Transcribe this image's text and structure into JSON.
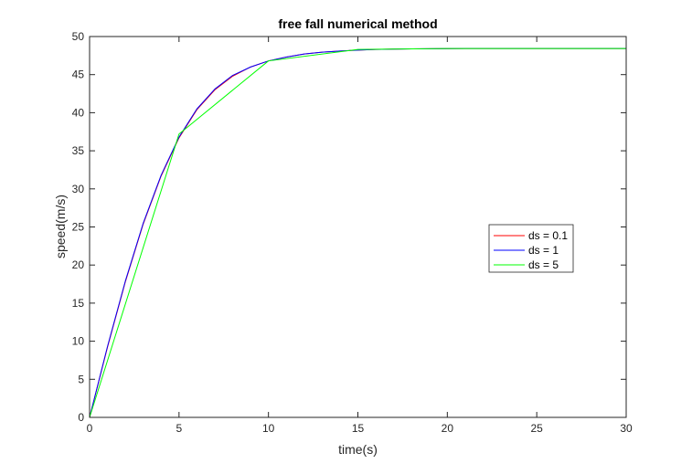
{
  "chart_data": {
    "type": "line",
    "title": "free fall numerical method",
    "xlabel": "time(s)",
    "ylabel": "speed(m/s)",
    "xlim": [
      0,
      30
    ],
    "ylim": [
      0,
      50
    ],
    "xticks": [
      0,
      5,
      10,
      15,
      20,
      25,
      30
    ],
    "yticks": [
      0,
      5,
      10,
      15,
      20,
      25,
      30,
      35,
      40,
      45,
      50
    ],
    "grid": false,
    "legend_position": "center-right",
    "series": [
      {
        "name": "ds = 0.1",
        "color": "#ff0000",
        "x": [
          0,
          1,
          2,
          3,
          4,
          5,
          6,
          7,
          8,
          9,
          10,
          11,
          12,
          13,
          14,
          15,
          16,
          17,
          18,
          19,
          20,
          21,
          22,
          23,
          24,
          25,
          26,
          27,
          28,
          29,
          30
        ],
        "y": [
          0,
          9.2,
          17.8,
          25.4,
          31.7,
          36.7,
          40.4,
          43.0,
          44.8,
          46.0,
          46.8,
          47.3,
          47.7,
          47.95,
          48.1,
          48.22,
          48.3,
          48.35,
          48.38,
          48.4,
          48.41,
          48.42,
          48.42,
          48.42,
          48.42,
          48.42,
          48.42,
          48.42,
          48.42,
          48.42,
          48.42
        ]
      },
      {
        "name": "ds = 1",
        "color": "#0000ff",
        "x": [
          0,
          1,
          2,
          3,
          4,
          5,
          6,
          7,
          8,
          9,
          10,
          11,
          12,
          13,
          14,
          15,
          16,
          17,
          18,
          19,
          20,
          21,
          22,
          23,
          24,
          25,
          26,
          27,
          28,
          29,
          30
        ],
        "y": [
          0,
          9.3,
          17.9,
          25.5,
          31.8,
          36.8,
          40.5,
          43.1,
          44.9,
          46.0,
          46.8,
          47.3,
          47.7,
          47.95,
          48.1,
          48.22,
          48.3,
          48.35,
          48.38,
          48.4,
          48.41,
          48.42,
          48.42,
          48.42,
          48.42,
          48.42,
          48.42,
          48.42,
          48.42,
          48.42,
          48.42
        ]
      },
      {
        "name": "ds = 5",
        "color": "#00ff00",
        "x": [
          0,
          5,
          10,
          15,
          20,
          25,
          30
        ],
        "y": [
          0,
          37.2,
          46.8,
          48.3,
          48.42,
          48.42,
          48.42
        ]
      }
    ]
  }
}
